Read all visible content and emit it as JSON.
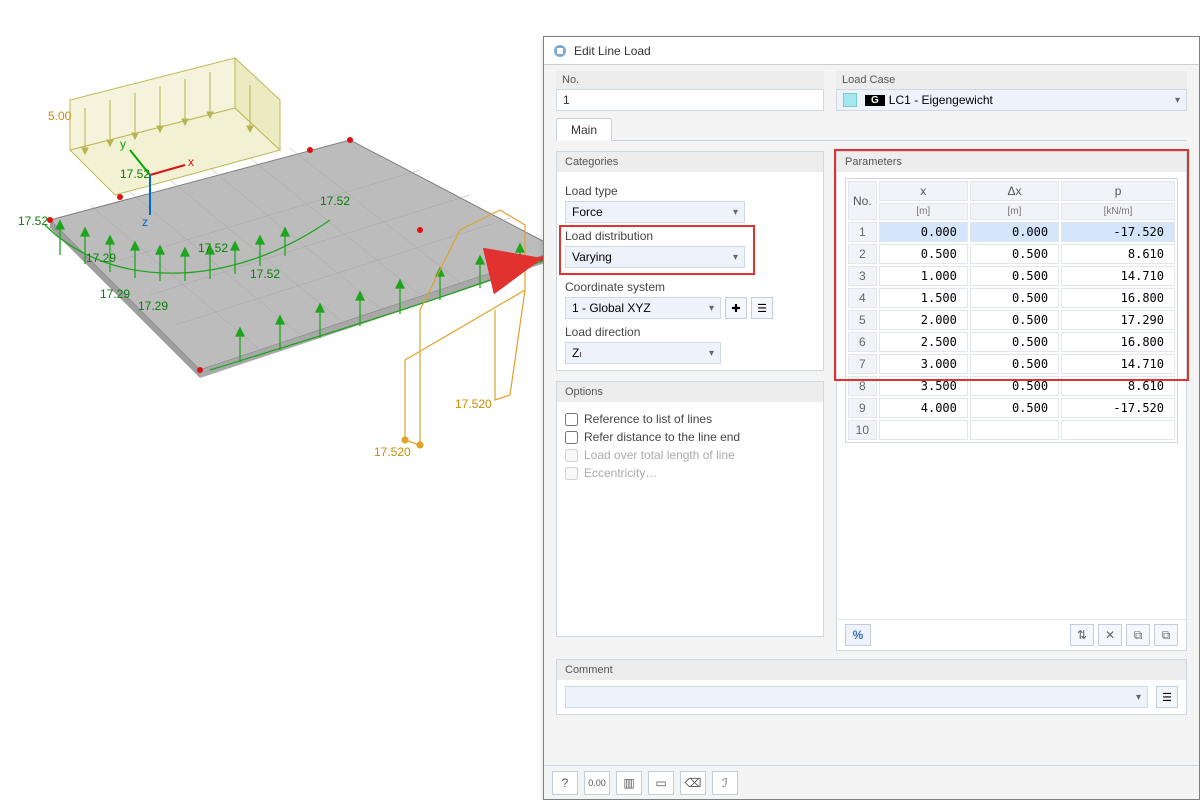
{
  "dialog": {
    "title": "Edit Line Load",
    "header": {
      "no_label": "No.",
      "no_value": "1",
      "loadcase_label": "Load Case",
      "loadcase_value": "LC1 - Eigengewicht",
      "loadcase_badge": "G",
      "loadcase_swatch": "#a5e7f0"
    },
    "tabs": {
      "main": "Main"
    },
    "categories": {
      "title": "Categories",
      "loadtype_label": "Load type",
      "loadtype_value": "Force",
      "loaddist_label": "Load distribution",
      "loaddist_value": "Varying",
      "loaddist_swatch": "#d97b2c",
      "coordsys_label": "Coordinate system",
      "coordsys_value": "1 - Global XYZ",
      "coordsys_swatch": "#a5e7f0",
      "loaddir_label": "Load direction",
      "loaddir_value": "Zₗ"
    },
    "options": {
      "title": "Options",
      "ref_lines": "Reference to list of lines",
      "ref_lineend": "Refer distance to the line end",
      "load_total": "Load over total length of line",
      "eccentricity": "Eccentricity…"
    },
    "parameters": {
      "title": "Parameters",
      "col_no": "No.",
      "col_x": "x",
      "col_x_unit": "[m]",
      "col_dx": "Δx",
      "col_dx_unit": "[m]",
      "col_p": "p",
      "col_p_unit": "[kN/m]",
      "rows": [
        {
          "n": 1,
          "x": "0.000",
          "dx": "0.000",
          "p": "-17.520"
        },
        {
          "n": 2,
          "x": "0.500",
          "dx": "0.500",
          "p": "8.610"
        },
        {
          "n": 3,
          "x": "1.000",
          "dx": "0.500",
          "p": "14.710"
        },
        {
          "n": 4,
          "x": "1.500",
          "dx": "0.500",
          "p": "16.800"
        },
        {
          "n": 5,
          "x": "2.000",
          "dx": "0.500",
          "p": "17.290"
        },
        {
          "n": 6,
          "x": "2.500",
          "dx": "0.500",
          "p": "16.800"
        },
        {
          "n": 7,
          "x": "3.000",
          "dx": "0.500",
          "p": "14.710"
        },
        {
          "n": 8,
          "x": "3.500",
          "dx": "0.500",
          "p": "8.610"
        },
        {
          "n": 9,
          "x": "4.000",
          "dx": "0.500",
          "p": "-17.520"
        }
      ],
      "empty_row_no": "10",
      "pct": "%",
      "highlight_color": "#e2322f",
      "sel_bg": "#d5e5fb"
    },
    "comment": {
      "title": "Comment",
      "value": ""
    }
  },
  "sketch": {
    "labels": [
      "5.00",
      "17.52",
      "17.52",
      "17.52",
      "17.52",
      "17.52",
      "17.29",
      "17.29",
      "17.29",
      "17.520",
      "17.520"
    ],
    "colors": {
      "slab": "#b9b9b9",
      "slab_edge": "#7f7f7f",
      "box": "#e4e2a1",
      "box_edge": "#b8b34f",
      "green": "#1ea51e",
      "orange": "#e0a22a",
      "label_green": "#0a7d0a",
      "label_orange": "#cc8b00"
    }
  }
}
